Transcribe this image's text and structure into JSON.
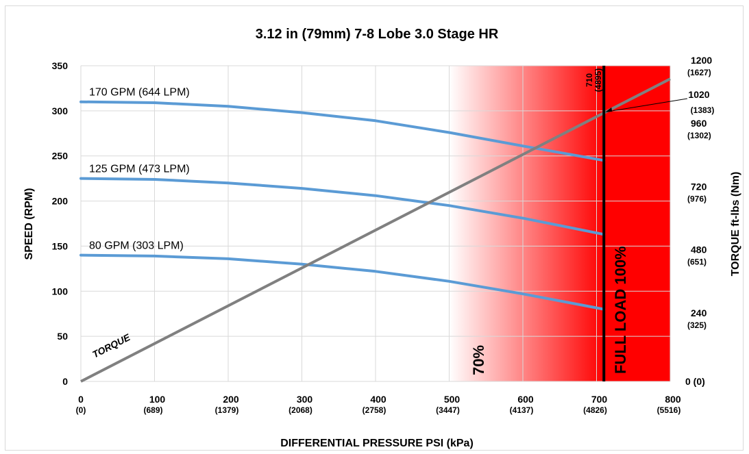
{
  "chart_data": {
    "type": "line",
    "title": "3.12 in (79mm) 7-8 Lobe 3.0 Stage HR",
    "xlabel": "DIFFERENTIAL PRESSURE PSI (kPa)",
    "ylabel": "SPEED (RPM)",
    "y2label": "TORQUE ft-lbs (Nm)",
    "xlim": [
      0,
      800
    ],
    "ylim": [
      0,
      350
    ],
    "y2lim": [
      0,
      1200
    ],
    "grid": true,
    "x_ticks": [
      {
        "value": 0,
        "label": "0",
        "sub": "(0)"
      },
      {
        "value": 100,
        "label": "100",
        "sub": "(689)"
      },
      {
        "value": 200,
        "label": "200",
        "sub": "(1379)"
      },
      {
        "value": 300,
        "label": "300",
        "sub": "(2068)"
      },
      {
        "value": 400,
        "label": "400",
        "sub": "(2758)"
      },
      {
        "value": 500,
        "label": "500",
        "sub": "(3447)"
      },
      {
        "value": 600,
        "label": "600",
        "sub": "(4137)"
      },
      {
        "value": 700,
        "label": "700",
        "sub": "(4826)"
      },
      {
        "value": 800,
        "label": "800",
        "sub": "(5516)"
      }
    ],
    "y_ticks": [
      0,
      50,
      100,
      150,
      200,
      250,
      300,
      350
    ],
    "y2_ticks": [
      {
        "value": 0,
        "label": "0 (0)",
        "sub": ""
      },
      {
        "value": 240,
        "label": "240",
        "sub": "(325)"
      },
      {
        "value": 480,
        "label": "480",
        "sub": "(651)"
      },
      {
        "value": 720,
        "label": "720",
        "sub": "(976)"
      },
      {
        "value": 960,
        "label": "960",
        "sub": "(1302)"
      },
      {
        "value": 1200,
        "label": "1200",
        "sub": "(1627)"
      }
    ],
    "series": [
      {
        "name": "170 GPM (644 LPM)",
        "color": "#5b9bd5",
        "x": [
          0,
          100,
          200,
          300,
          400,
          500,
          600,
          710
        ],
        "y": [
          310,
          309,
          305,
          298,
          289,
          276,
          261,
          245
        ]
      },
      {
        "name": "125 GPM (473 LPM)",
        "color": "#5b9bd5",
        "x": [
          0,
          100,
          200,
          300,
          400,
          500,
          600,
          710
        ],
        "y": [
          225,
          224,
          220,
          214,
          206,
          195,
          181,
          163
        ]
      },
      {
        "name": "80 GPM (303 LPM)",
        "color": "#5b9bd5",
        "x": [
          0,
          100,
          200,
          300,
          400,
          500,
          600,
          710
        ],
        "y": [
          140,
          139,
          136,
          130,
          122,
          111,
          97,
          80
        ]
      }
    ],
    "torque": {
      "label": "TORQUE",
      "color": "#808080",
      "x": [
        0,
        800
      ],
      "y2": [
        0,
        1150
      ]
    },
    "zones": {
      "gradient_start_x": 500,
      "full_load_x": 710,
      "label_70": "70%",
      "label_full": "FULL LOAD 100%",
      "color": "#ff0000"
    },
    "annotations": {
      "vline_value": "710",
      "vline_sub": "(4895)",
      "torque_point_value": "1020",
      "torque_point_sub": "(1383)"
    }
  }
}
